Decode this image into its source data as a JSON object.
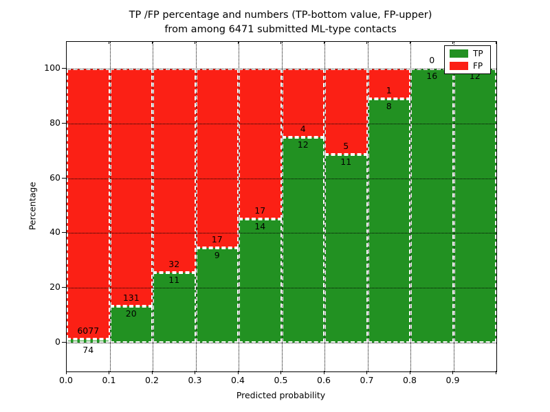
{
  "title": {
    "line1": "TP /FP percentage and numbers (TP-bottom value, FP-upper)",
    "line2": "from among 6471 submitted ML-type contacts"
  },
  "axes": {
    "x_label": "Predicted probability",
    "y_label": "Percentage",
    "x_ticks": [
      "0.0",
      "0.1",
      "0.2",
      "0.3",
      "0.4",
      "0.5",
      "0.6",
      "0.7",
      "0.8",
      "0.9"
    ],
    "y_ticks": [
      "0",
      "20",
      "40",
      "60",
      "80",
      "100"
    ]
  },
  "legend": {
    "position": "upper right",
    "items": [
      {
        "label": "TP",
        "color": "#229122"
      },
      {
        "label": "FP",
        "color": "#FB2015"
      }
    ]
  },
  "chart_data": {
    "type": "bar",
    "subtype": "stacked-percentage",
    "title": "TP /FP percentage and numbers (TP-bottom value, FP-upper) from among 6471 submitted ML-type contacts",
    "xlabel": "Predicted probability",
    "ylabel": "Percentage",
    "xlim": [
      0.0,
      1.0
    ],
    "ylim_percent": [
      0,
      100
    ],
    "bin_width": 0.1,
    "total_contacts": 6471,
    "grid": "dotted",
    "legend_position": "upper right",
    "categories": [
      "0.0-0.1",
      "0.1-0.2",
      "0.2-0.3",
      "0.3-0.4",
      "0.4-0.5",
      "0.5-0.6",
      "0.6-0.7",
      "0.7-0.8",
      "0.8-0.9",
      "0.9-1.0"
    ],
    "series": [
      {
        "name": "TP",
        "color": "#229122",
        "counts": [
          74,
          20,
          11,
          9,
          14,
          12,
          11,
          8,
          16,
          12
        ]
      },
      {
        "name": "FP",
        "color": "#FB2015",
        "counts": [
          6077,
          131,
          32,
          17,
          17,
          4,
          5,
          1,
          0,
          0
        ]
      }
    ],
    "tp_percent": [
      1.2,
      13.2,
      25.6,
      34.6,
      45.2,
      75.0,
      68.8,
      88.9,
      100.0,
      100.0
    ],
    "bar_value_labels": "FP count printed above TP/FP boundary, TP count printed below boundary",
    "tp_label_below_axis_bins": [
      0
    ],
    "fp_label_hidden_bins": [
      9
    ]
  }
}
